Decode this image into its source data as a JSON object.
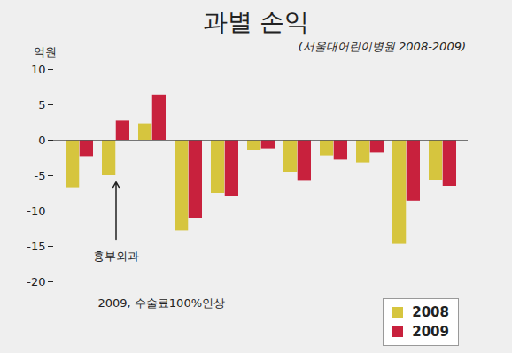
{
  "chart_data": {
    "type": "bar",
    "title": "과별 손익",
    "subtitle": "(서울대어린이병원 2008-2009)",
    "y_label": "억원",
    "categories": [
      null,
      null,
      null,
      null,
      null,
      null,
      null,
      null,
      null,
      null,
      null
    ],
    "series": [
      {
        "name": "2008",
        "color": "#d6c53e",
        "values": [
          -6.7,
          -5.0,
          2.3,
          -12.8,
          -7.5,
          -1.4,
          -4.5,
          -2.2,
          -3.2,
          -14.7,
          -5.7
        ]
      },
      {
        "name": "2009",
        "color": "#c8213d",
        "values": [
          -2.3,
          2.7,
          6.4,
          -11.0,
          -7.9,
          -1.2,
          -5.8,
          -2.8,
          -1.8,
          -8.6,
          -6.5
        ]
      }
    ],
    "ylim": [
      -20,
      10
    ],
    "yticks": [
      -20,
      -15,
      -10,
      -5,
      0,
      5,
      10
    ],
    "grid": false,
    "legend": "bottom-right",
    "annotations": [
      {
        "text": "흉부외과",
        "category_index": 1
      },
      {
        "text": "2009, 수술료100%인상"
      }
    ]
  }
}
